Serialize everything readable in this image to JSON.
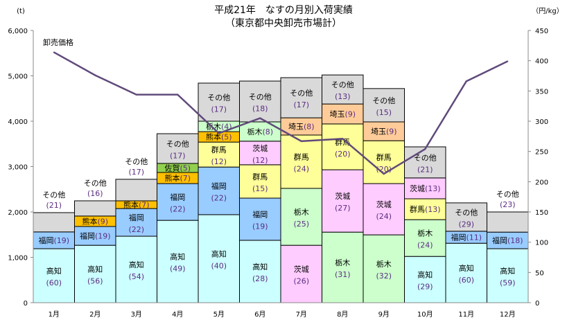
{
  "chart_data": {
    "type": "bar",
    "stacked": true,
    "title": "平成21年　なすの月別入荷実績",
    "subtitle": "（東京都中央卸売市場計）",
    "ylabel": "(t)",
    "y2label": "（円/kg）",
    "ylim": [
      0,
      6000
    ],
    "y2lim": [
      0,
      450
    ],
    "yticks": [
      "0",
      "1,000",
      "2,000",
      "3,000",
      "4,000",
      "5,000",
      "6,000"
    ],
    "y2ticks": [
      "0",
      "50",
      "100",
      "150",
      "200",
      "250",
      "300",
      "350",
      "400",
      "450"
    ],
    "categories": [
      "1月",
      "2月",
      "3月",
      "4月",
      "5月",
      "6月",
      "7月",
      "8月",
      "9月",
      "10月",
      "11月",
      "12月"
    ],
    "grid": false,
    "colors": {
      "高知": "#CCFFFF",
      "福岡": "#99CCFF",
      "熊本": "#FFC000",
      "佐賀": "#92D050",
      "群馬": "#FFFF99",
      "栃木": "#CCFFCC",
      "茨城": "#FFCCFF",
      "埼玉": "#FFCC99",
      "その他": "#D9D9D9",
      "line": "#604A7B"
    },
    "months": [
      {
        "segments": [
          {
            "name": "高知",
            "share": "(60)",
            "value": 1190
          },
          {
            "name": "福岡",
            "share": "(19)",
            "value": 370
          },
          {
            "name": "その他",
            "share": "(21)",
            "value": 425
          }
        ]
      },
      {
        "segments": [
          {
            "name": "高知",
            "share": "(56)",
            "value": 1265
          },
          {
            "name": "福岡",
            "share": "(19)",
            "value": 415
          },
          {
            "name": "熊本",
            "share": "(9)",
            "value": 230
          },
          {
            "name": "その他",
            "share": "(16)",
            "value": 335
          }
        ]
      },
      {
        "segments": [
          {
            "name": "高知",
            "share": "(54)",
            "value": 1465
          },
          {
            "name": "福岡",
            "share": "(22)",
            "value": 610
          },
          {
            "name": "熊本",
            "share": "(7)",
            "value": 170
          },
          {
            "name": "その他",
            "share": "(17)",
            "value": 475
          }
        ]
      },
      {
        "segments": [
          {
            "name": "高知",
            "share": "(49)",
            "value": 1815
          },
          {
            "name": "福岡",
            "share": "(22)",
            "value": 810
          },
          {
            "name": "熊本",
            "share": "(7)",
            "value": 245
          },
          {
            "name": "佐賀",
            "share": "(5)",
            "value": 200
          },
          {
            "name": "その他",
            "share": "(17)",
            "value": 655
          }
        ]
      },
      {
        "segments": [
          {
            "name": "高知",
            "share": "(40)",
            "value": 1940
          },
          {
            "name": "福岡",
            "share": "(22)",
            "value": 1050
          },
          {
            "name": "群馬",
            "share": "(12)",
            "value": 550
          },
          {
            "name": "熊本",
            "share": "(5)",
            "value": 230
          },
          {
            "name": "栃木",
            "share": "(4)",
            "value": 230
          },
          {
            "name": "その他",
            "share": "(17)",
            "value": 840
          }
        ]
      },
      {
        "segments": [
          {
            "name": "高知",
            "share": "(28)",
            "value": 1375
          },
          {
            "name": "福岡",
            "share": "(19)",
            "value": 930
          },
          {
            "name": "群馬",
            "share": "(15)",
            "value": 735
          },
          {
            "name": "茨城",
            "share": "(12)",
            "value": 520
          },
          {
            "name": "栃木",
            "share": "(8)",
            "value": 425
          },
          {
            "name": "その他",
            "share": "(18)",
            "value": 900
          }
        ]
      },
      {
        "segments": [
          {
            "name": "茨城",
            "share": "(26)",
            "value": 1265
          },
          {
            "name": "栃木",
            "share": "(25)",
            "value": 1255
          },
          {
            "name": "群馬",
            "share": "(24)",
            "value": 1175
          },
          {
            "name": "埼玉",
            "share": "(8)",
            "value": 380
          },
          {
            "name": "その他",
            "share": "(17)",
            "value": 885
          }
        ]
      },
      {
        "segments": [
          {
            "name": "栃木",
            "share": "(31)",
            "value": 1555
          },
          {
            "name": "茨城",
            "share": "(27)",
            "value": 1375
          },
          {
            "name": "群馬",
            "share": "(20)",
            "value": 1010
          },
          {
            "name": "埼玉",
            "share": "(9)",
            "value": 440
          },
          {
            "name": "その他",
            "share": "(13)",
            "value": 640
          }
        ]
      },
      {
        "segments": [
          {
            "name": "栃木",
            "share": "(32)",
            "value": 1495
          },
          {
            "name": "茨城",
            "share": "(24)",
            "value": 1130
          },
          {
            "name": "群馬",
            "share": "(20)",
            "value": 945
          },
          {
            "name": "埼玉",
            "share": "(9)",
            "value": 415
          },
          {
            "name": "その他",
            "share": "(15)",
            "value": 735
          }
        ]
      },
      {
        "segments": [
          {
            "name": "高知",
            "share": "(29)",
            "value": 1020
          },
          {
            "name": "栃木",
            "share": "(24)",
            "value": 810
          },
          {
            "name": "群馬",
            "share": "(13)",
            "value": 460
          },
          {
            "name": "茨城",
            "share": "(13)",
            "value": 460
          },
          {
            "name": "その他",
            "share": "(21)",
            "value": 685
          }
        ]
      },
      {
        "segments": [
          {
            "name": "高知",
            "share": "(60)",
            "value": 1310
          },
          {
            "name": "福岡",
            "share": "(11)",
            "value": 265
          },
          {
            "name": "その他",
            "share": "(29)",
            "value": 625
          }
        ]
      },
      {
        "segments": [
          {
            "name": "高知",
            "share": "(59)",
            "value": 1190
          },
          {
            "name": "福岡",
            "share": "(18)",
            "value": 365
          },
          {
            "name": "その他",
            "share": "(23)",
            "value": 445
          }
        ]
      }
    ],
    "line": {
      "name": "卸売価格",
      "values": [
        414,
        376,
        344,
        344,
        280,
        305,
        267,
        271,
        213,
        254,
        366,
        399
      ]
    }
  }
}
